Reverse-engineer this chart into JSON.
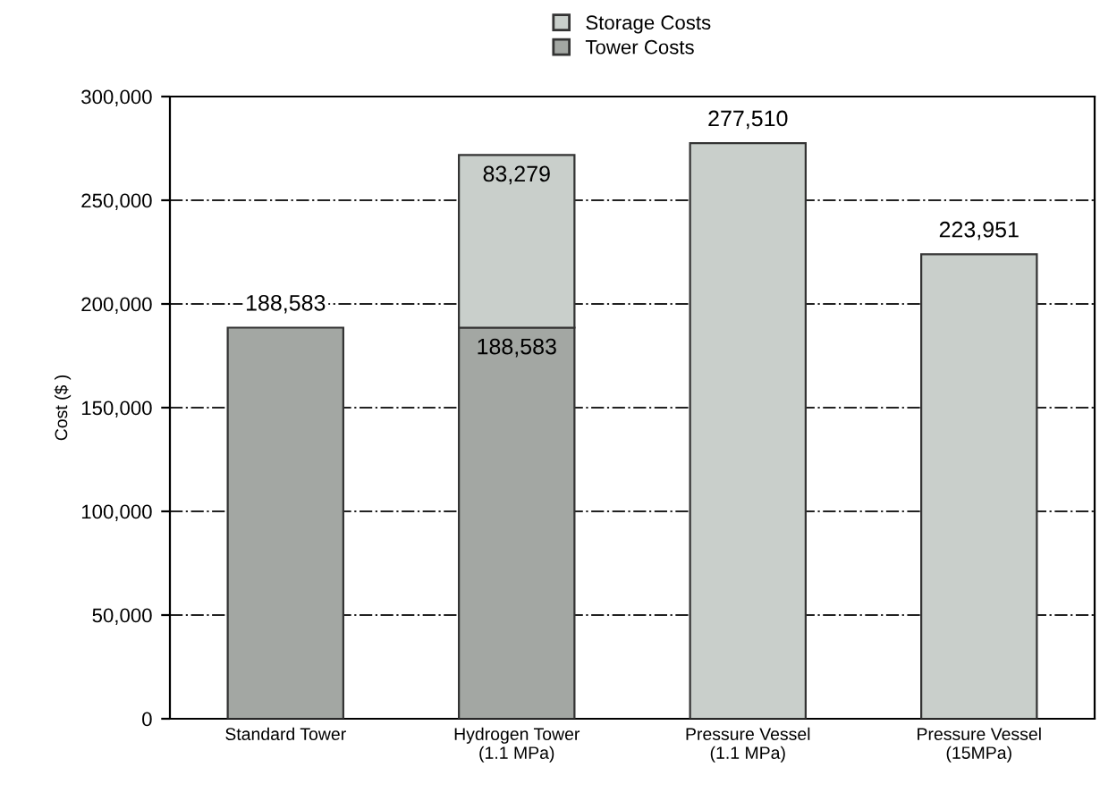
{
  "chart_data": {
    "type": "bar",
    "stacked": true,
    "ylabel": "Cost ($ )",
    "categories": [
      "Standard Tower",
      "Hydrogen Tower\n(1.1 MPa)",
      "Pressure Vessel\n(1.1 MPa)",
      "Pressure Vessel\n(15MPa)"
    ],
    "series": [
      {
        "name": "Tower Costs",
        "color": "#a3a7a3",
        "values": [
          188583,
          188583,
          null,
          null
        ],
        "value_labels": [
          "188,583",
          "188,583",
          null,
          null
        ]
      },
      {
        "name": "Storage Costs",
        "color": "#c9cfcb",
        "values": [
          null,
          83279,
          277510,
          223951
        ],
        "value_labels": [
          null,
          "83,279",
          "277,510",
          "223,951"
        ]
      }
    ],
    "ylim": [
      0,
      300000
    ],
    "yticks": [
      {
        "value": 0,
        "label": "0"
      },
      {
        "value": 50000,
        "label": "50,000"
      },
      {
        "value": 100000,
        "label": "100,000"
      },
      {
        "value": 150000,
        "label": "150,000"
      },
      {
        "value": 200000,
        "label": "200,000"
      },
      {
        "value": 250000,
        "label": "250,000"
      },
      {
        "value": 300000,
        "label": "300,000"
      }
    ],
    "grid": "y",
    "legend": "top"
  }
}
